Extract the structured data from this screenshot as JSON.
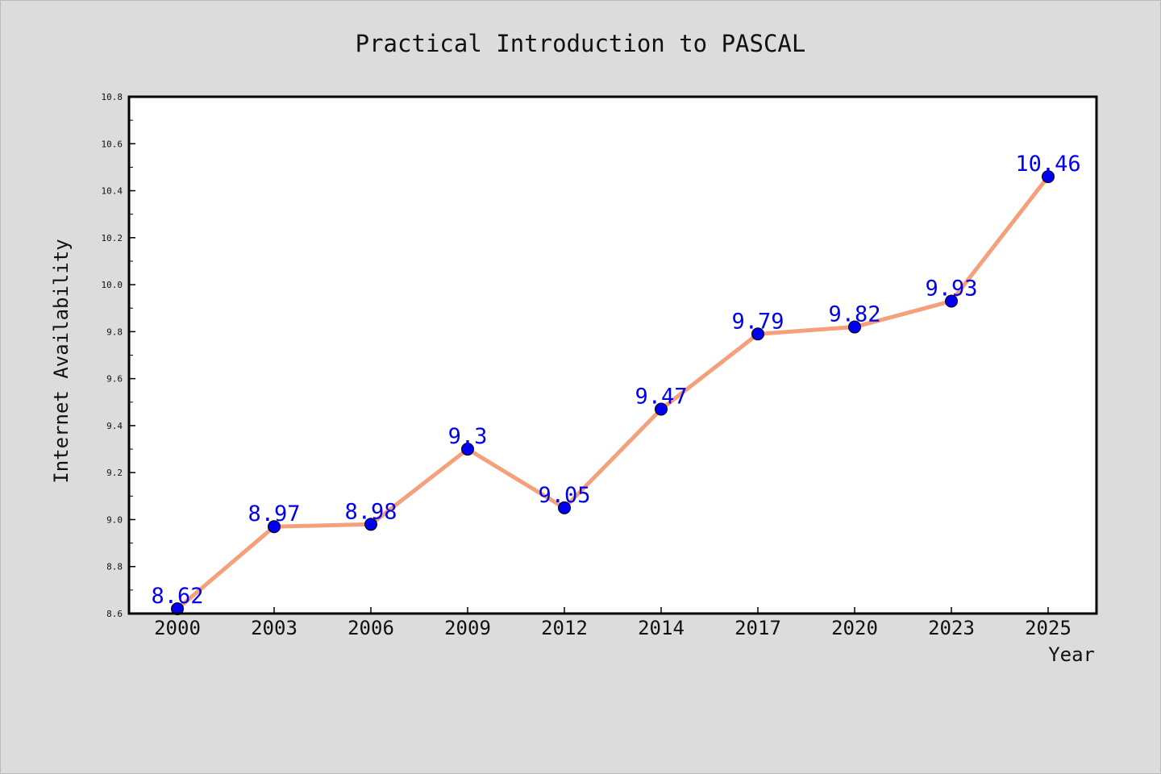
{
  "chart_data": {
    "type": "line",
    "title": "Practical Introduction to PASCAL",
    "xlabel": "Year",
    "ylabel": "Internet Availability",
    "categories": [
      "2000",
      "2003",
      "2006",
      "2009",
      "2012",
      "2014",
      "2017",
      "2020",
      "2023",
      "2025"
    ],
    "series": [
      {
        "values": [
          8.62,
          8.97,
          8.98,
          9.3,
          9.05,
          9.47,
          9.79,
          9.82,
          9.93,
          10.46
        ],
        "labels": [
          "8.62",
          "8.97",
          "8.98",
          "9.3",
          "9.05",
          "9.47",
          "9.79",
          "9.82",
          "9.93",
          "10.46"
        ],
        "line_color": "#f5a07a",
        "marker_color": "#0000ee"
      }
    ],
    "ylim": [
      8.6,
      10.8
    ],
    "yticks": [
      "8.6",
      "8.8",
      "9.0",
      "9.2",
      "9.4",
      "9.6",
      "9.8",
      "10.0",
      "10.2",
      "10.4",
      "10.6",
      "10.8"
    ],
    "grid": false,
    "legend": "none",
    "colors": {
      "background": "#dcdcdc",
      "plot_background": "#ffffff",
      "data_label": "#0000ee"
    }
  }
}
